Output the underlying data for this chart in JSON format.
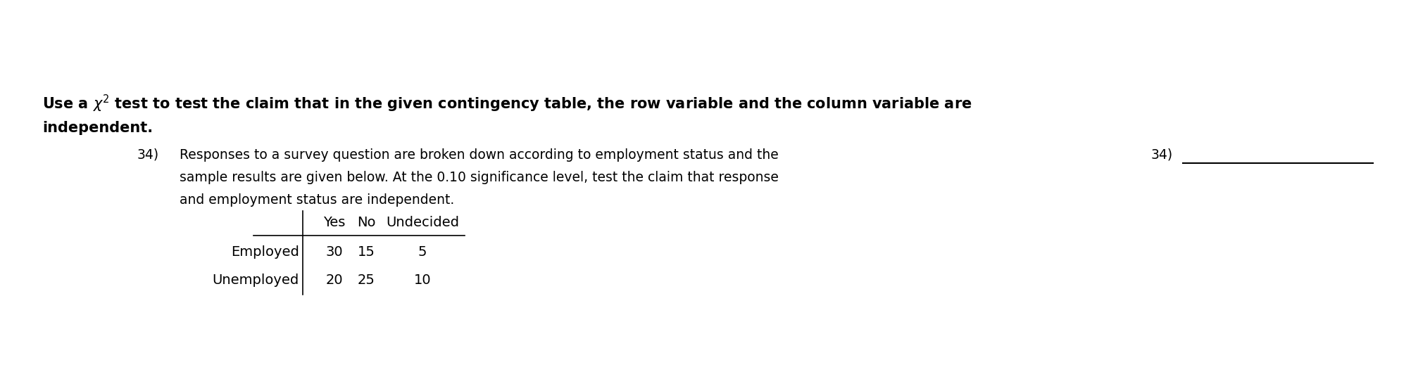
{
  "bg_color": "#ffffff",
  "header_line1": "Use a $\\chi^2$ test to test the claim that in the given contingency table, the row variable and the column variable are",
  "header_line2": "independent.",
  "problem_number": "34)",
  "problem_text_line1": "Responses to a survey question are broken down according to employment status and the",
  "problem_text_line2": "sample results are given below. At the 0.10 significance level, test the claim that response",
  "problem_text_line3": "and employment status are independent.",
  "table_col_headers": [
    "Yes",
    "No",
    "Undecided"
  ],
  "table_row_headers": [
    "Employed",
    "Unemployed"
  ],
  "table_data": [
    [
      30,
      15,
      5
    ],
    [
      20,
      25,
      10
    ]
  ],
  "answer_number": "34)",
  "font_size_header": 15.0,
  "font_size_body": 13.5,
  "font_size_table": 14.0,
  "fig_width": 20.04,
  "fig_height": 5.22,
  "dpi": 100
}
